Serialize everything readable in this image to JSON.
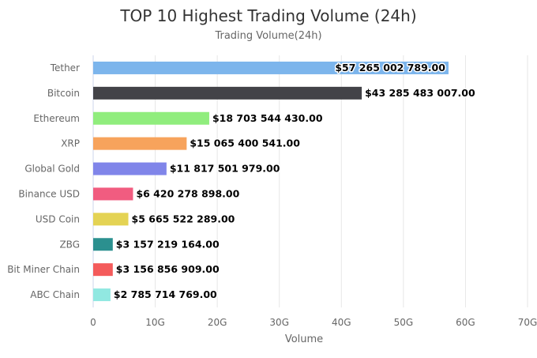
{
  "chart_data": {
    "type": "bar",
    "orientation": "horizontal",
    "title": "TOP 10 Highest Trading Volume (24h)",
    "subtitle": "Trading Volume(24h)",
    "xlabel": "Volume",
    "ylabel": "",
    "xlim": [
      0,
      70000000000
    ],
    "x_ticks": [
      "0",
      "10G",
      "20G",
      "30G",
      "40G",
      "50G",
      "60G",
      "70G"
    ],
    "x_tick_values": [
      0,
      10000000000,
      20000000000,
      30000000000,
      40000000000,
      50000000000,
      60000000000,
      70000000000
    ],
    "grid": "vertical",
    "legend": "none",
    "categories": [
      "Tether",
      "Bitcoin",
      "Ethereum",
      "XRP",
      "Global Gold",
      "Binance USD",
      "USD Coin",
      "ZBG",
      "Bit Miner Chain",
      "ABC Chain"
    ],
    "values": [
      57265002789.0,
      43285483007.0,
      18703544430.0,
      15065400541.0,
      11817501979.0,
      6420278898.0,
      5665522289.0,
      3157219164.0,
      3156856909.0,
      2785714769.0
    ],
    "data_labels": [
      "$57 265 002 789.00",
      "$43 285 483 007.00",
      "$18 703 544 430.00",
      "$15 065 400 541.00",
      "$11 817 501 979.00",
      "$6 420 278 898.00",
      "$5 665 522 289.00",
      "$3 157 219 164.00",
      "$3 156 856 909.00",
      "$2 785 714 769.00"
    ],
    "colors": [
      "#7cb5ec",
      "#434348",
      "#90ed7d",
      "#f7a35c",
      "#8085e9",
      "#f15c80",
      "#e4d354",
      "#2b908f",
      "#f45b5b",
      "#91e8e1"
    ]
  }
}
